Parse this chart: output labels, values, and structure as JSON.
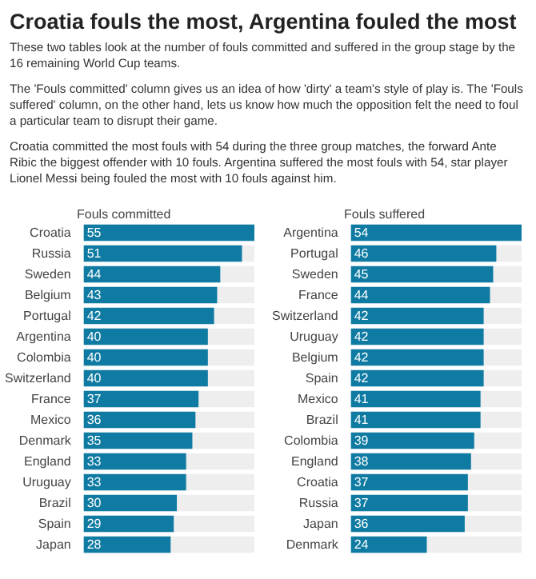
{
  "chart_data": [
    {
      "type": "other",
      "title": "Croatia fouls the most, Argentina fouled the most",
      "subtitle": "These two tables look at the number of fouls committed and suffered in the group stage by the 16 remaining World Cup teams.",
      "annotations": [
        "The 'Fouls committed' column gives us an idea of how 'dirty' a team's style of play is. The 'Fouls suffered' column, on the other hand, lets us know how much the opposition felt the need to foul a particular team to disrupt their game.",
        "Croatia committed the most fouls with 54 during the three group matches, the forward Ante Ribic the biggest offender with 10 fouls. Argentina suffered the most fouls with 54, star player Lionel Messi being fouled the most with 10 fouls against him."
      ]
    },
    {
      "type": "bar",
      "orientation": "horizontal",
      "title": "Fouls committed",
      "color": "#0f7ba3",
      "data_labels": true,
      "categories": [
        "Croatia",
        "Russia",
        "Sweden",
        "Belgium",
        "Portugal",
        "Argentina",
        "Colombia",
        "Switzerland",
        "France",
        "Mexico",
        "Denmark",
        "England",
        "Uruguay",
        "Brazil",
        "Spain",
        "Japan"
      ],
      "values": [
        55,
        51,
        44,
        43,
        42,
        40,
        40,
        40,
        37,
        36,
        35,
        33,
        33,
        30,
        29,
        28
      ]
    },
    {
      "type": "bar",
      "orientation": "horizontal",
      "title": "Fouls suffered",
      "color": "#0f7ba3",
      "data_labels": true,
      "categories": [
        "Argentina",
        "Portugal",
        "Sweden",
        "France",
        "Switzerland",
        "Uruguay",
        "Belgium",
        "Spain",
        "Mexico",
        "Brazil",
        "Colombia",
        "England",
        "Croatia",
        "Russia",
        "Japan",
        "Denmark"
      ],
      "values": [
        54,
        46,
        45,
        44,
        42,
        42,
        42,
        42,
        41,
        41,
        39,
        38,
        37,
        37,
        36,
        24
      ]
    }
  ]
}
